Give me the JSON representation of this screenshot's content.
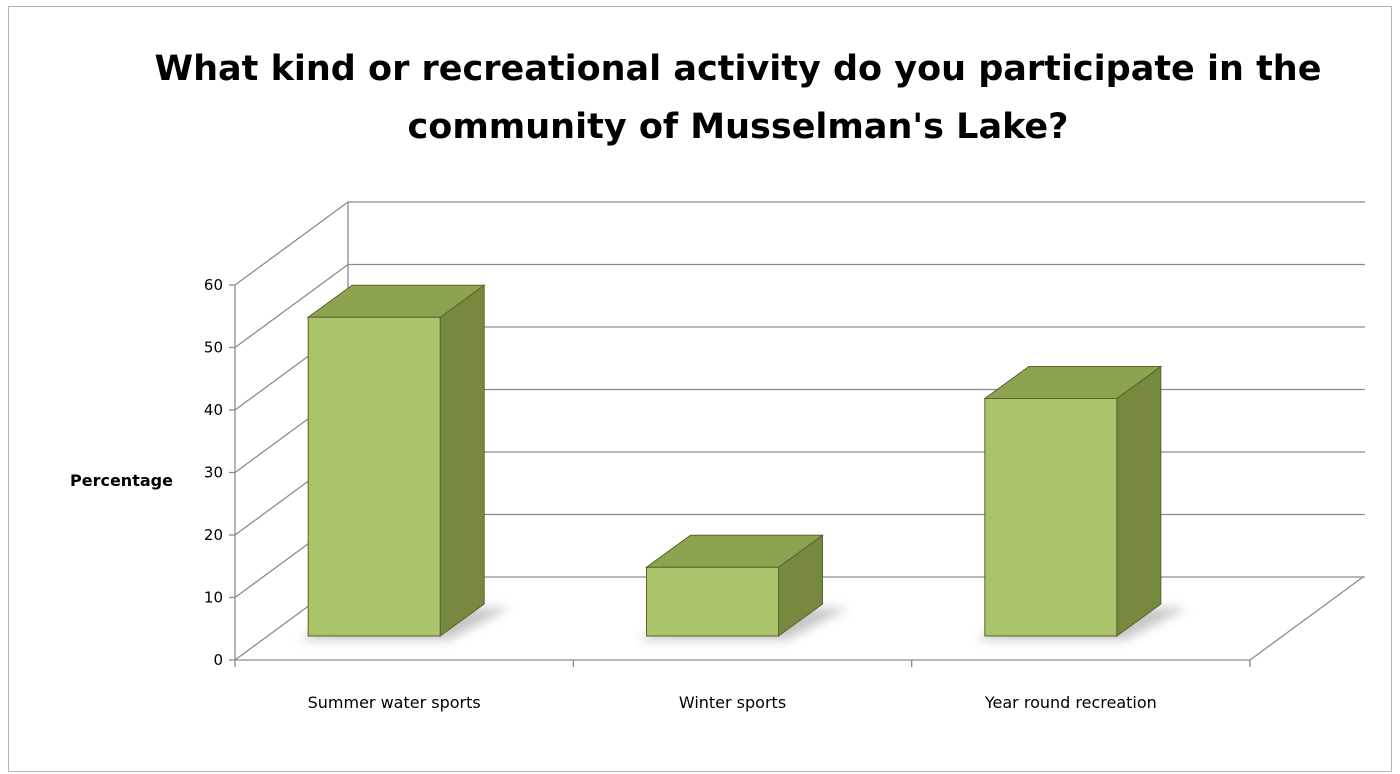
{
  "chart_data": {
    "type": "bar",
    "title": "What kind or recreational activity do you participate in the community of Musselman's Lake?",
    "xlabel": "",
    "ylabel": "Percentage",
    "categories": [
      "Summer water sports",
      "Winter sports",
      "Year round recreation"
    ],
    "series": [
      {
        "values": [
          51,
          11,
          38
        ]
      }
    ],
    "ylim": [
      0,
      60
    ],
    "yticks": [
      0,
      10,
      20,
      30,
      40,
      50,
      60
    ],
    "grid": true,
    "legend": "none",
    "style": "3d-column",
    "colors": {
      "bar_front": "#abc46c",
      "bar_side": "#77893f",
      "bar_top": "#8da350",
      "bar_edge": "#56652b",
      "grid": "#8c8c8c",
      "axis": "#8c8c8c"
    }
  }
}
